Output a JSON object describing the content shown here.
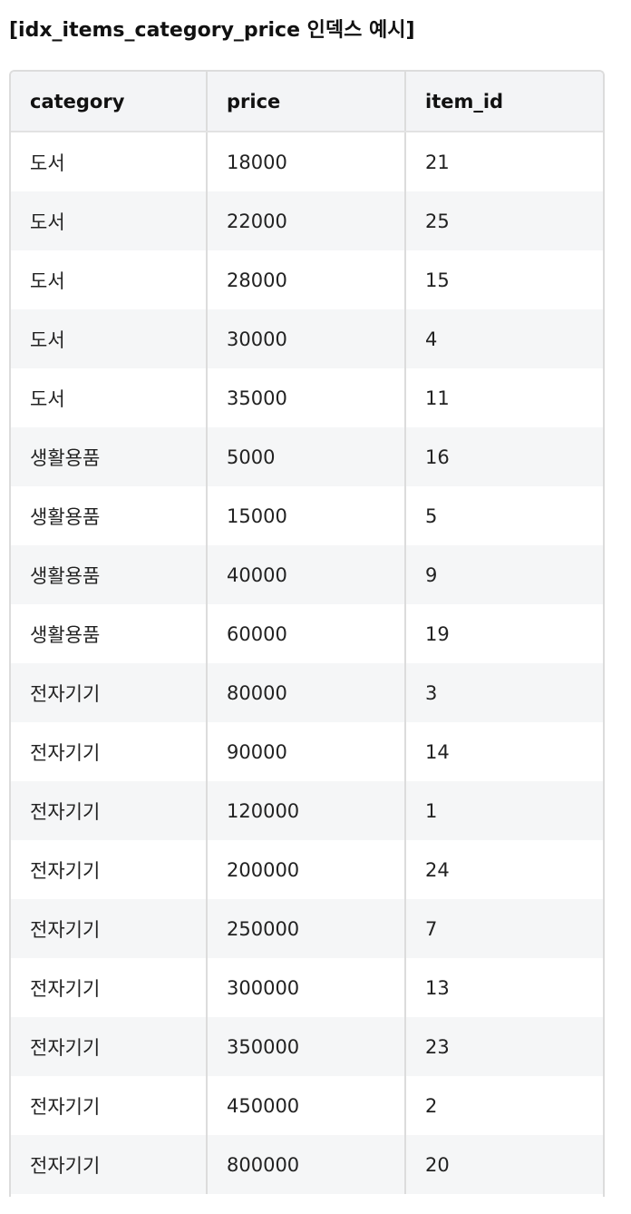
{
  "title": "[idx_items_category_price 인덱스 예시]",
  "table": {
    "headers": [
      "category",
      "price",
      "item_id"
    ],
    "rows": [
      [
        "도서",
        "18000",
        "21"
      ],
      [
        "도서",
        "22000",
        "25"
      ],
      [
        "도서",
        "28000",
        "15"
      ],
      [
        "도서",
        "30000",
        "4"
      ],
      [
        "도서",
        "35000",
        "11"
      ],
      [
        "생활용품",
        "5000",
        "16"
      ],
      [
        "생활용품",
        "15000",
        "5"
      ],
      [
        "생활용품",
        "40000",
        "9"
      ],
      [
        "생활용품",
        "60000",
        "19"
      ],
      [
        "전자기기",
        "80000",
        "3"
      ],
      [
        "전자기기",
        "90000",
        "14"
      ],
      [
        "전자기기",
        "120000",
        "1"
      ],
      [
        "전자기기",
        "200000",
        "24"
      ],
      [
        "전자기기",
        "250000",
        "7"
      ],
      [
        "전자기기",
        "300000",
        "13"
      ],
      [
        "전자기기",
        "350000",
        "23"
      ],
      [
        "전자기기",
        "450000",
        "2"
      ],
      [
        "전자기기",
        "800000",
        "20"
      ]
    ]
  }
}
